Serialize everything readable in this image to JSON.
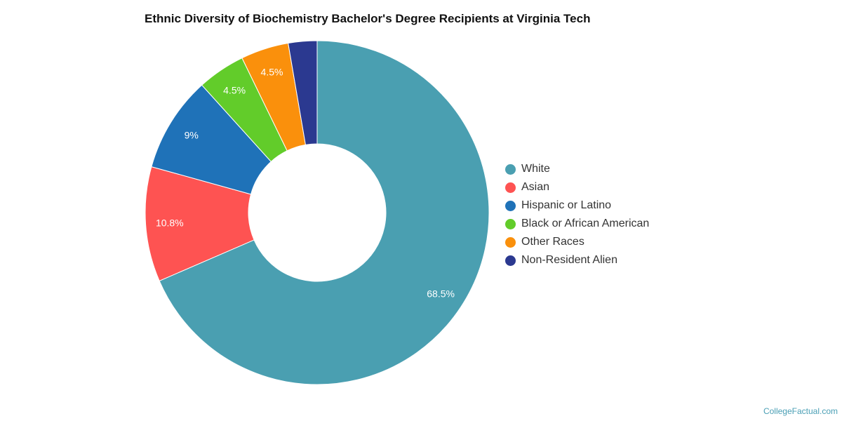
{
  "chart_data": {
    "type": "pie",
    "title": "Ethnic Diversity of Biochemistry Bachelor's Degree Recipients at Virginia Tech",
    "donut": true,
    "legend_position": "right",
    "slices": [
      {
        "name": "White",
        "value": 68.5,
        "label": "68.5%",
        "color": "#4a9fb1"
      },
      {
        "name": "Asian",
        "value": 10.8,
        "label": "10.8%",
        "color": "#fe5352"
      },
      {
        "name": "Hispanic or Latino",
        "value": 9,
        "label": "9%",
        "color": "#1f72b8"
      },
      {
        "name": "Black or African American",
        "value": 4.5,
        "label": "4.5%",
        "color": "#62cc2a"
      },
      {
        "name": "Other Races",
        "value": 4.5,
        "label": "4.5%",
        "color": "#fa900c"
      },
      {
        "name": "Non-Resident Alien",
        "value": 2.7,
        "label": "",
        "color": "#2b3990"
      }
    ]
  },
  "footer": {
    "credit": "CollegeFactual.com"
  }
}
